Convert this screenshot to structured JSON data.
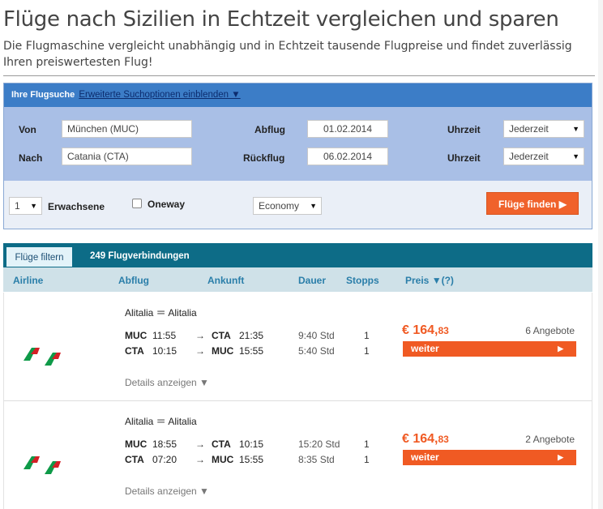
{
  "header": {
    "title": "Flüge nach Sizilien in Echtzeit vergleichen und sparen",
    "subtitle": "Die Flugmaschine vergleicht unabhängig und in Echtzeit tausende Flugpreise und findet zuverlässig Ihren preiswertesten Flug!"
  },
  "search": {
    "heading": "Ihre Flugsuche",
    "toggle_label": "Erweiterte Suchoptionen einblenden ▼",
    "from_label": "Von",
    "from_value": "München (MUC)",
    "to_label": "Nach",
    "to_value": "Catania (CTA)",
    "depart_label": "Abflug",
    "depart_value": "01.02.2014",
    "return_label": "Rückflug",
    "return_value": "06.02.2014",
    "time_label": "Uhrzeit",
    "time_depart": "Jederzeit",
    "time_return": "Jederzeit",
    "adults_value": "1",
    "adults_label": "Erwachsene",
    "oneway_label": "Oneway",
    "oneway_checked": false,
    "cabin_value": "Economy",
    "submit_label": "Flüge finden ▶"
  },
  "results": {
    "filter_tab": "Flüge filtern",
    "count": "249 Flugverbindungen",
    "columns": {
      "airline": "Airline",
      "depart": "Abflug",
      "arrive": "Ankunft",
      "duration": "Dauer",
      "stops": "Stopps",
      "price": "Preis ▼(?)"
    },
    "items": [
      {
        "airlines": "Alitalia ＝ Alitalia",
        "outbound": {
          "from": "MUC",
          "dep": "11:55",
          "to": "CTA",
          "arr": "21:35",
          "duration": "9:40 Std",
          "stops": "1"
        },
        "inbound": {
          "from": "CTA",
          "dep": "10:15",
          "to": "MUC",
          "arr": "15:55",
          "duration": "5:40 Std",
          "stops": "1"
        },
        "price_main": "€ 164,",
        "price_cents": "83",
        "offers": "6 Angebote",
        "button": "weiter",
        "details": "Details anzeigen ▼"
      },
      {
        "airlines": "Alitalia ＝ Alitalia",
        "outbound": {
          "from": "MUC",
          "dep": "18:55",
          "to": "CTA",
          "arr": "10:15",
          "duration": "15:20 Std",
          "stops": "1"
        },
        "inbound": {
          "from": "CTA",
          "dep": "07:20",
          "to": "MUC",
          "arr": "15:55",
          "duration": "8:35 Std",
          "stops": "1"
        },
        "price_main": "€ 164,",
        "price_cents": "83",
        "offers": "2 Angebote",
        "button": "weiter",
        "details": "Details anzeigen ▼"
      }
    ]
  },
  "colors": {
    "accent_orange": "#f05a23",
    "header_blue": "#3c7dc7",
    "results_teal": "#0d6c87",
    "airline_green": "#0e9a48",
    "airline_red": "#d42027"
  },
  "icons": {
    "arrow": "→",
    "play": "▶",
    "airline_logo": "alitalia-logo"
  }
}
